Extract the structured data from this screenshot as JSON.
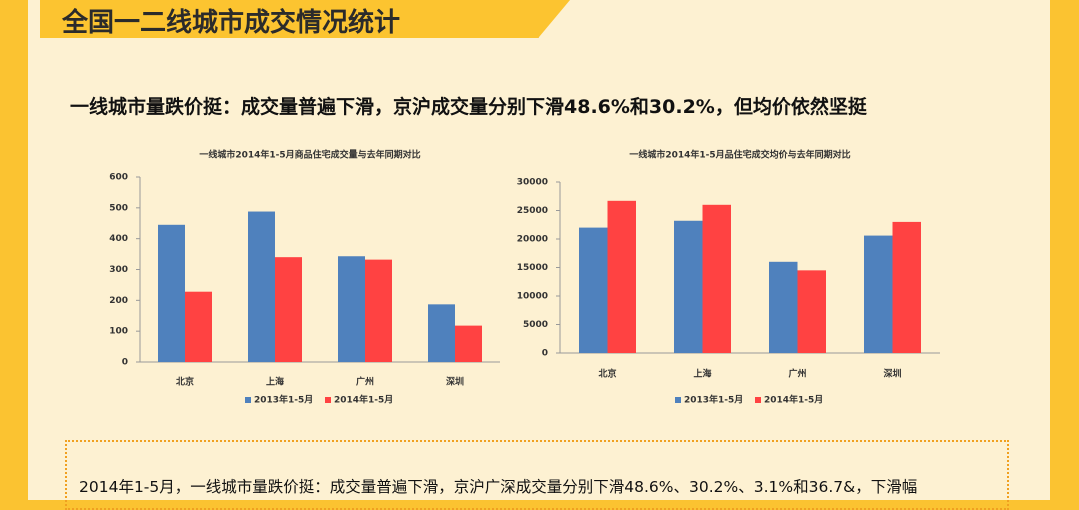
{
  "header": {
    "title": "全国一二线城市成交情况统计"
  },
  "headline": "一线城市量跌价挺：成交量普遍下滑，京沪成交量分别下滑48.6%和30.2%，但均价依然坚挺",
  "chart_data": [
    {
      "type": "bar",
      "title": "一线城市2014年1-5月商品住宅成交量与去年同期对比",
      "categories": [
        "北京",
        "上海",
        "广州",
        "深圳"
      ],
      "series": [
        {
          "name": "2013年1-5月",
          "color": "#4f81bd",
          "values": [
            445,
            488,
            343,
            187
          ]
        },
        {
          "name": "2014年1-5月",
          "color": "#ff4242",
          "values": [
            228,
            340,
            332,
            118
          ]
        }
      ],
      "ylim": [
        0,
        600
      ],
      "yticks": [
        0,
        100,
        200,
        300,
        400,
        500,
        600
      ],
      "grid": false
    },
    {
      "type": "bar",
      "title": "一线城市2014年1-5月品住宅成交均价与去年同期对比",
      "categories": [
        "北京",
        "上海",
        "广州",
        "深圳"
      ],
      "series": [
        {
          "name": "2013年1-5月",
          "color": "#4f81bd",
          "values": [
            22000,
            23200,
            16000,
            20600
          ]
        },
        {
          "name": "2014年1-5月",
          "color": "#ff4242",
          "values": [
            26700,
            26000,
            14500,
            23000
          ]
        }
      ],
      "ylim": [
        0,
        30000
      ],
      "yticks": [
        0,
        5000,
        10000,
        15000,
        20000,
        25000,
        30000
      ],
      "grid": false
    }
  ],
  "note": "2014年1-5月，一线城市量跌价挺：成交量普遍下滑，京沪广深成交量分别下滑48.6%、30.2%、3.1%和36.7&，下滑幅"
}
